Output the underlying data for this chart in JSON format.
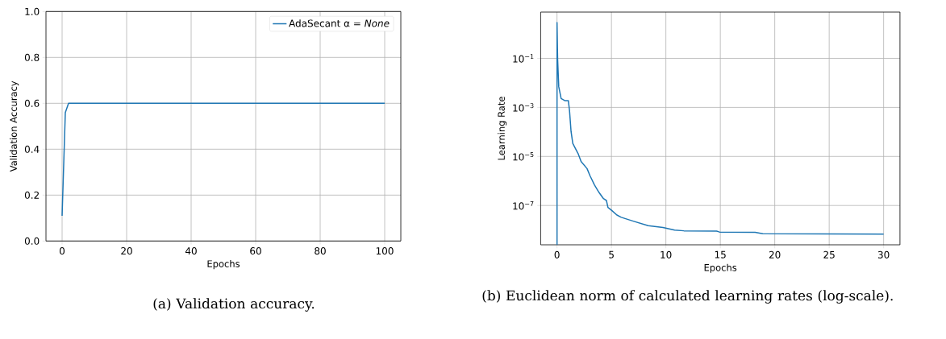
{
  "chart_data": [
    {
      "type": "line",
      "xlabel": "Epochs",
      "ylabel": "Validation Accuracy",
      "x": [
        0,
        1,
        2,
        100
      ],
      "series": [
        {
          "name": "AdaSecant  α = *None*",
          "color": "#1f77b4",
          "values": [
            0.11,
            0.56,
            0.6,
            0.6
          ]
        }
      ],
      "xlim": [
        -5,
        105
      ],
      "ylim": [
        0,
        1
      ],
      "xticks": [
        0,
        20,
        40,
        60,
        80,
        100
      ],
      "yticks": [
        {
          "value": 0,
          "label": "0.0"
        },
        0.2,
        0.4,
        0.6,
        0.8,
        {
          "value": 1,
          "label": "1.0"
        }
      ],
      "grid": true,
      "legend": "top right",
      "annotations": [
        "(a) Validation accuracy."
      ]
    },
    {
      "type": "line",
      "xlabel": "Epochs",
      "ylabel": "Learning Rate",
      "log": "y",
      "x": [
        0,
        0,
        0.06,
        0.16,
        0.38,
        0.71,
        1.04,
        1.15,
        1.29,
        1.45,
        1.94,
        2.21,
        2.76,
        3.04,
        3.45,
        3.86,
        4.27,
        4.54,
        4.68,
        5.03,
        5.5,
        5.9,
        7.0,
        8.37,
        9.73,
        10.8,
        11.65,
        14.66,
        14.93,
        18.2,
        18.9,
        30
      ],
      "series": [
        {
          "color": "#1f77b4",
          "values": [
            2.5e-09,
            2.9,
            0.087,
            0.007,
            0.0023,
            0.0019,
            0.0019,
            0.00074,
            0.000105,
            3.4e-05,
            1.3e-05,
            6.3e-06,
            3.2e-06,
            1.6e-06,
            6.8e-07,
            3.4e-07,
            1.9e-07,
            1.6e-07,
            8.3e-08,
            6.3e-08,
            4.1e-08,
            3.3e-08,
            2.3e-08,
            1.5e-08,
            1.26e-08,
            1e-08,
            9.3e-09,
            9.1e-09,
            8.3e-09,
            8.1e-09,
            7.1e-09,
            6.8e-09
          ]
        }
      ],
      "xlim": [
        -1.5,
        31.5
      ],
      "ylim": [
        2.5e-09,
        7.7
      ],
      "xticks": [
        0,
        5,
        10,
        15,
        20,
        25,
        30
      ],
      "yticks": [
        {
          "value": 1e-07,
          "label": "10$^{−7}$"
        },
        {
          "value": 1e-05,
          "label": "10$^{−5}$"
        },
        {
          "value": 0.001,
          "label": "10$^{−3}$"
        },
        {
          "value": 0.1,
          "label": "10$^{−1}$"
        }
      ],
      "grid": true,
      "annotations": [
        "(b) Euclidean norm of calculated learning rates (log-scale)."
      ]
    }
  ]
}
